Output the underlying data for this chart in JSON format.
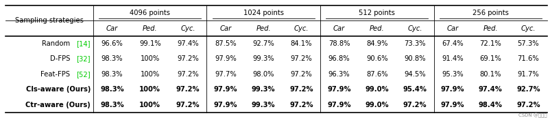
{
  "col_groups": [
    {
      "label": "4096 points"
    },
    {
      "label": "1024 points"
    },
    {
      "label": "512 points"
    },
    {
      "label": "256 points"
    }
  ],
  "row_header": "Sampling strategies",
  "subcol_labels": [
    "Car",
    "Ped.",
    "Cyc."
  ],
  "rows": [
    {
      "label_parts": [
        {
          "text": "Random ",
          "color": "#000000",
          "bold": false
        },
        {
          "text": "[14]",
          "color": "#00cc00",
          "bold": false
        }
      ],
      "bold": false,
      "values": [
        "96.6%",
        "99.1%",
        "97.4%",
        "87.5%",
        "92.7%",
        "84.1%",
        "78.8%",
        "84.9%",
        "73.3%",
        "67.4%",
        "72.1%",
        "57.3%"
      ]
    },
    {
      "label_parts": [
        {
          "text": "D-FPS ",
          "color": "#000000",
          "bold": false
        },
        {
          "text": "[32]",
          "color": "#00cc00",
          "bold": false
        }
      ],
      "bold": false,
      "values": [
        "98.3%",
        "100%",
        "97.2%",
        "97.9%",
        "99.3%",
        "97.2%",
        "96.8%",
        "90.6%",
        "90.8%",
        "91.4%",
        "69.1%",
        "71.6%"
      ]
    },
    {
      "label_parts": [
        {
          "text": "Feat-FPS ",
          "color": "#000000",
          "bold": false
        },
        {
          "text": "[52]",
          "color": "#00cc00",
          "bold": false
        }
      ],
      "bold": false,
      "values": [
        "98.3%",
        "100%",
        "97.2%",
        "97.7%",
        "98.0%",
        "97.2%",
        "96.3%",
        "87.6%",
        "94.5%",
        "95.3%",
        "80.1%",
        "91.7%"
      ]
    },
    {
      "label_parts": [
        {
          "text": "Cls-aware (Ours)",
          "color": "#000000",
          "bold": true
        }
      ],
      "bold": true,
      "values": [
        "98.3%",
        "100%",
        "97.2%",
        "97.9%",
        "99.3%",
        "97.2%",
        "97.9%",
        "99.0%",
        "95.4%",
        "97.9%",
        "97.4%",
        "92.7%"
      ]
    },
    {
      "label_parts": [
        {
          "text": "Ctr-aware (Ours)",
          "color": "#000000",
          "bold": true
        }
      ],
      "bold": true,
      "values": [
        "98.3%",
        "100%",
        "97.2%",
        "97.9%",
        "99.3%",
        "97.2%",
        "97.9%",
        "99.0%",
        "97.2%",
        "97.9%",
        "98.4%",
        "97.2%"
      ]
    }
  ],
  "bg_color": "#ffffff",
  "line_color": "#000000",
  "font_size": 7.2,
  "watermark": "CSDN @马少爷"
}
